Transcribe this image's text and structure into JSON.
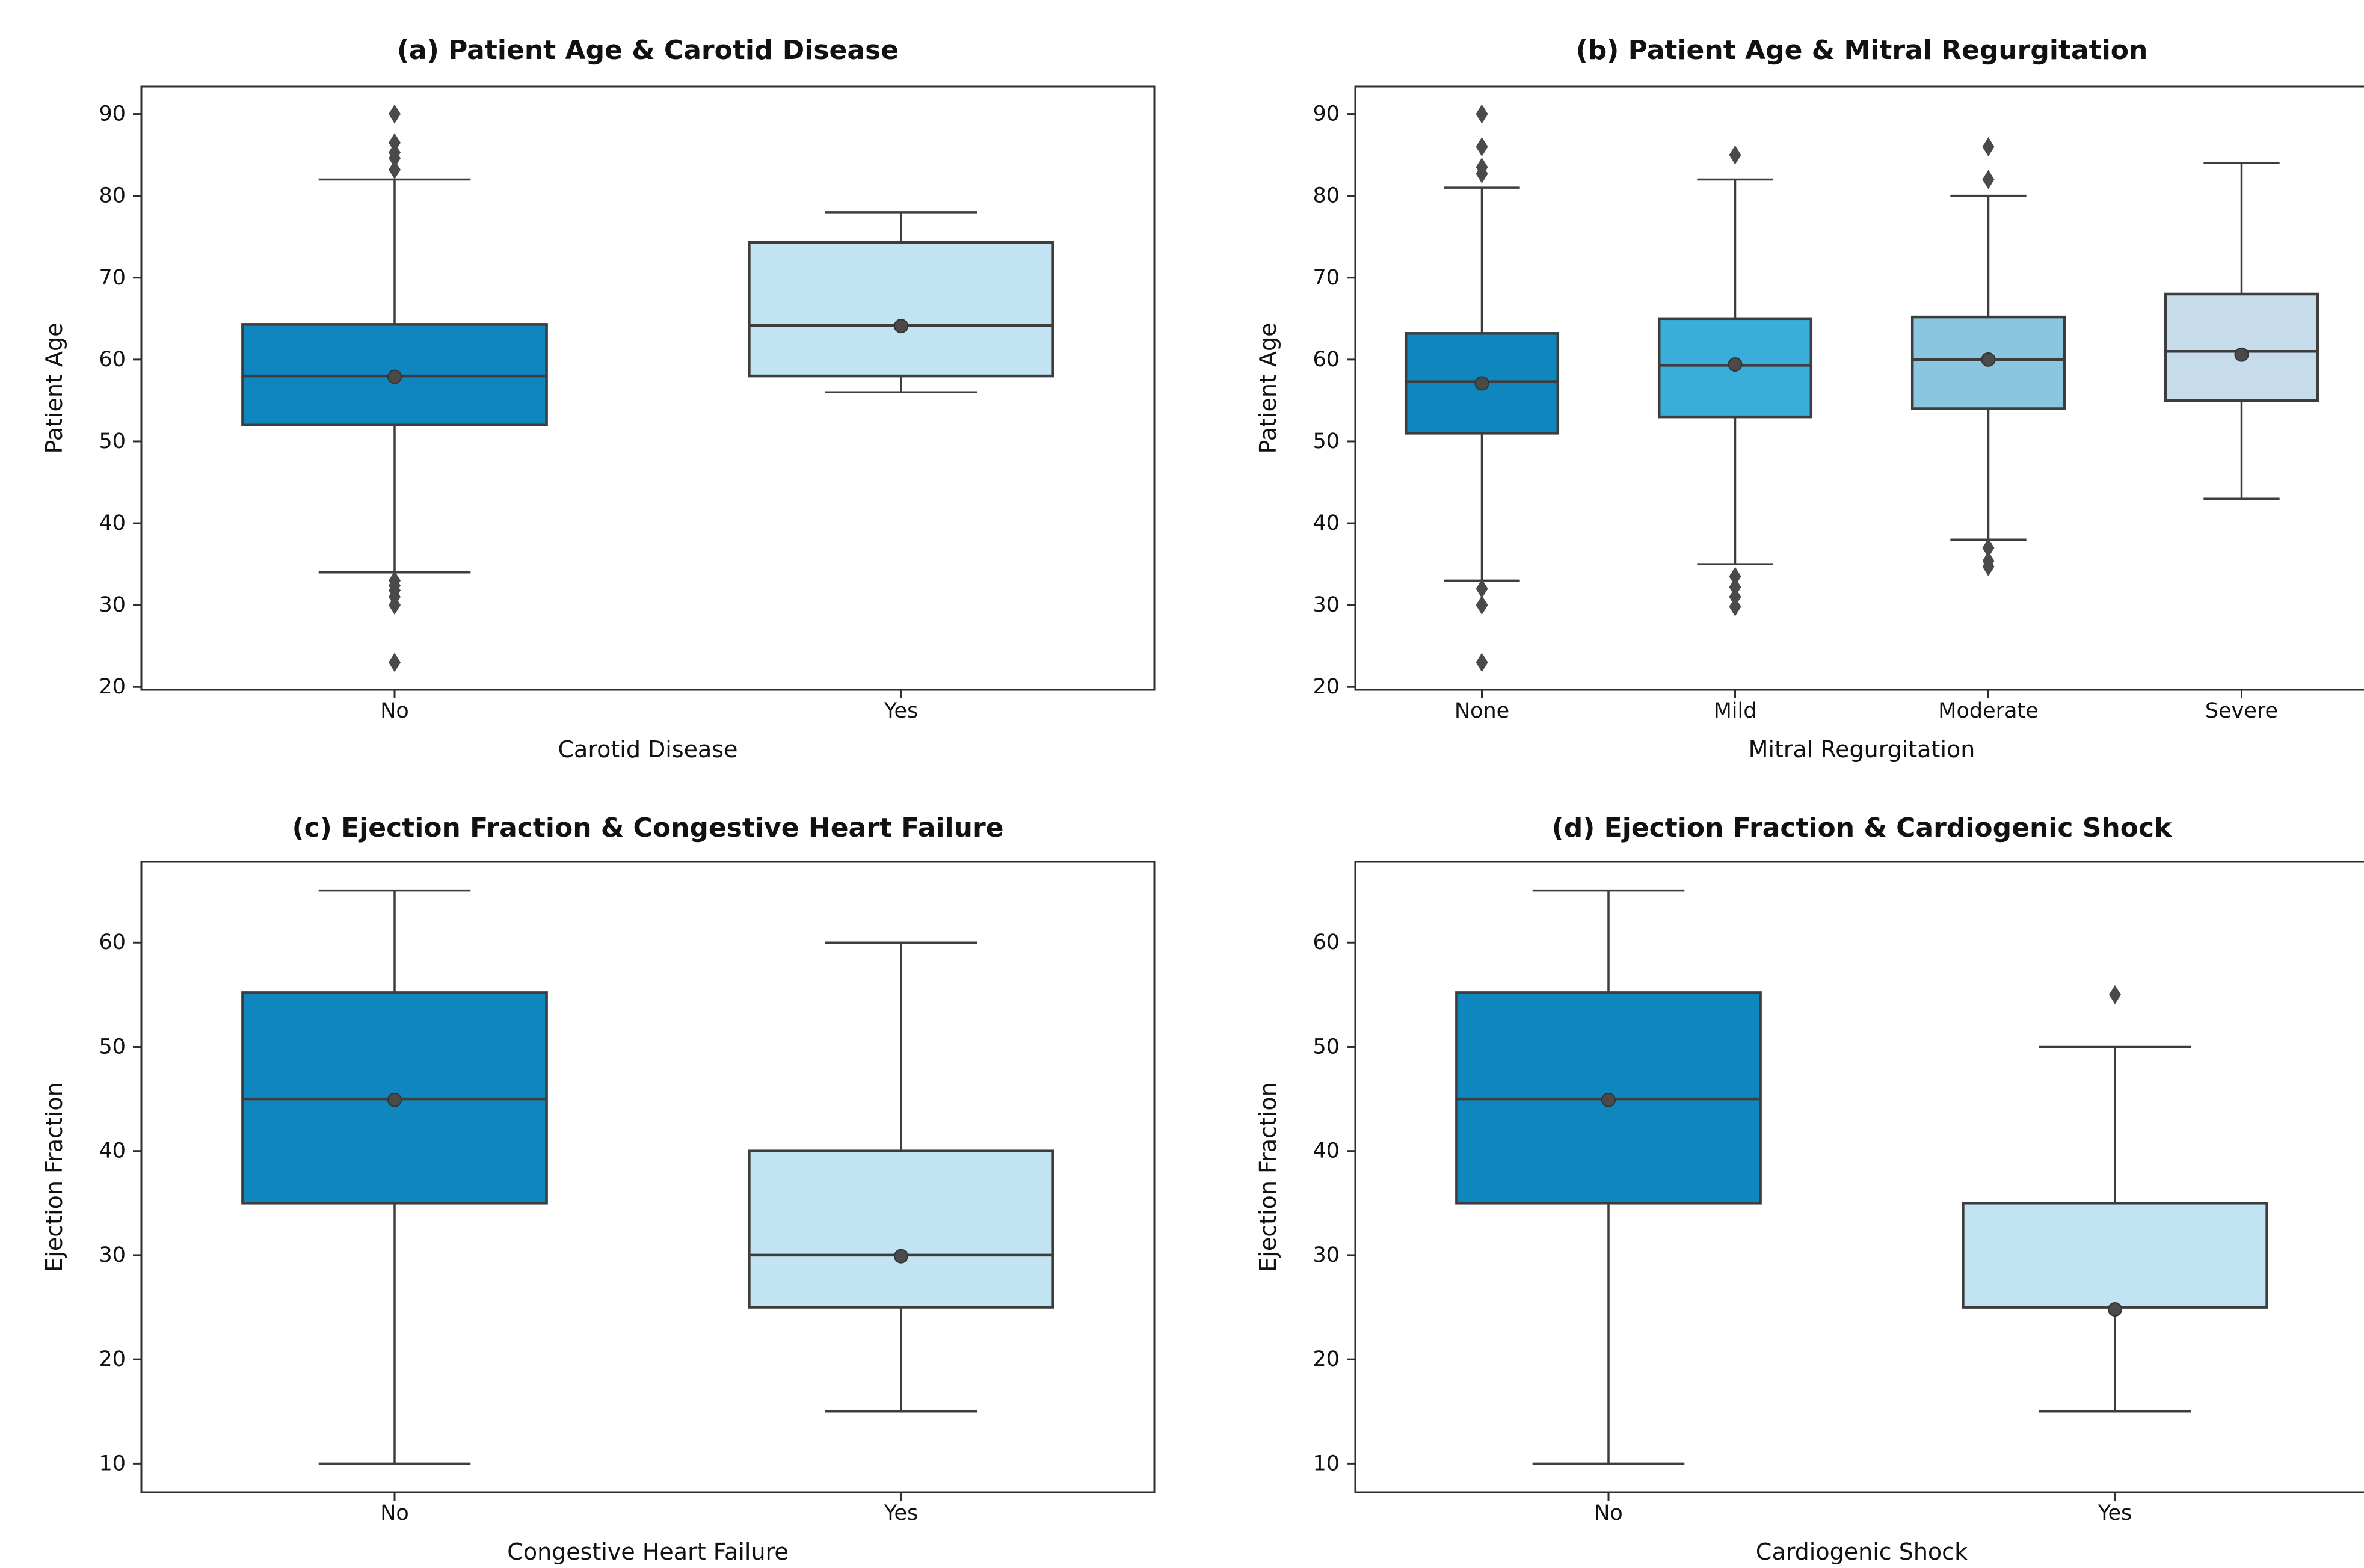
{
  "figure": {
    "background": "#ffffff",
    "spine_color": "#2e2e2e",
    "box_line_color": "#3d3d3d",
    "marker_color": "#4a4a4a",
    "text_color": "#111111"
  },
  "chart_data": [
    {
      "panel": "a",
      "type": "box",
      "title": "(a) Patient Age & Carotid Disease",
      "xlabel": "Carotid Disease",
      "ylabel": "Patient Age",
      "ylim": [
        19.65,
        93.35
      ],
      "yticks": [
        20,
        30,
        40,
        50,
        60,
        70,
        80,
        90
      ],
      "grid": false,
      "categories": [
        "No",
        "Yes"
      ],
      "series": [
        {
          "category": "No",
          "color": "#1086bf",
          "whisker_low": 34,
          "q1": 52,
          "median": 58,
          "q3": 64.3,
          "whisker_high": 82,
          "mean": 57.9,
          "outliers_high": [
            90,
            86.5,
            85.3,
            84.6,
            83.2
          ],
          "outliers_low": [
            33,
            32.4,
            31.8,
            31,
            30,
            23
          ]
        },
        {
          "category": "Yes",
          "color": "#c2e3f2",
          "whisker_low": 56,
          "q1": 58,
          "median": 64.2,
          "q3": 74.3,
          "whisker_high": 78,
          "mean": 64.1,
          "outliers_high": [],
          "outliers_low": []
        }
      ]
    },
    {
      "panel": "b",
      "type": "box",
      "title": "(b) Patient Age & Mitral Regurgitation",
      "xlabel": "Mitral Regurgitation",
      "ylabel": "Patient Age",
      "ylim": [
        19.65,
        93.35
      ],
      "yticks": [
        20,
        30,
        40,
        50,
        60,
        70,
        80,
        90
      ],
      "grid": false,
      "categories": [
        "None",
        "Mild",
        "Moderate",
        "Severe"
      ],
      "series": [
        {
          "category": "None",
          "color": "#1086bf",
          "whisker_low": 33,
          "q1": 51,
          "median": 57.3,
          "q3": 63.2,
          "whisker_high": 81,
          "mean": 57.1,
          "outliers_high": [
            90,
            86,
            83.5,
            82.7
          ],
          "outliers_low": [
            32,
            30,
            23
          ]
        },
        {
          "category": "Mild",
          "color": "#3aaeda",
          "whisker_low": 35,
          "q1": 53,
          "median": 59.3,
          "q3": 65,
          "whisker_high": 82,
          "mean": 59.4,
          "outliers_high": [
            85
          ],
          "outliers_low": [
            33.5,
            32.2,
            31,
            29.8
          ]
        },
        {
          "category": "Moderate",
          "color": "#8ac6e0",
          "whisker_low": 38,
          "q1": 54,
          "median": 60,
          "q3": 65.2,
          "whisker_high": 80,
          "mean": 60,
          "outliers_high": [
            86,
            82
          ],
          "outliers_low": [
            37,
            35.4,
            34.7
          ]
        },
        {
          "category": "Severe",
          "color": "#c6dcea",
          "whisker_low": 43,
          "q1": 55,
          "median": 61,
          "q3": 68,
          "whisker_high": 84,
          "mean": 60.6,
          "outliers_high": [],
          "outliers_low": []
        }
      ]
    },
    {
      "panel": "c",
      "type": "box",
      "title": "(c) Ejection Fraction & Congestive Heart Failure",
      "xlabel": "Congestive Heart Failure",
      "ylabel": "Ejection Fraction",
      "ylim": [
        7.25,
        67.75
      ],
      "yticks": [
        10,
        20,
        30,
        40,
        50,
        60
      ],
      "grid": false,
      "categories": [
        "No",
        "Yes"
      ],
      "series": [
        {
          "category": "No",
          "color": "#1086bf",
          "whisker_low": 10,
          "q1": 35,
          "median": 45,
          "q3": 55.2,
          "whisker_high": 65,
          "mean": 44.9,
          "outliers_high": [],
          "outliers_low": []
        },
        {
          "category": "Yes",
          "color": "#c2e3f2",
          "whisker_low": 15,
          "q1": 25,
          "median": 30,
          "q3": 40,
          "whisker_high": 60,
          "mean": 29.9,
          "outliers_high": [],
          "outliers_low": []
        }
      ]
    },
    {
      "panel": "d",
      "type": "box",
      "title": "(d) Ejection Fraction & Cardiogenic Shock",
      "xlabel": "Cardiogenic Shock",
      "ylabel": "Ejection Fraction",
      "ylim": [
        7.25,
        67.75
      ],
      "yticks": [
        10,
        20,
        30,
        40,
        50,
        60
      ],
      "grid": false,
      "categories": [
        "No",
        "Yes"
      ],
      "series": [
        {
          "category": "No",
          "color": "#1086bf",
          "whisker_low": 10,
          "q1": 35,
          "median": 45,
          "q3": 55.2,
          "whisker_high": 65,
          "mean": 44.9,
          "outliers_high": [],
          "outliers_low": []
        },
        {
          "category": "Yes",
          "color": "#c2e3f2",
          "whisker_low": 15,
          "q1": 25,
          "median": 25,
          "q3": 35,
          "whisker_high": 50,
          "mean": 24.8,
          "outliers_high": [
            55
          ],
          "outliers_low": []
        }
      ]
    }
  ]
}
